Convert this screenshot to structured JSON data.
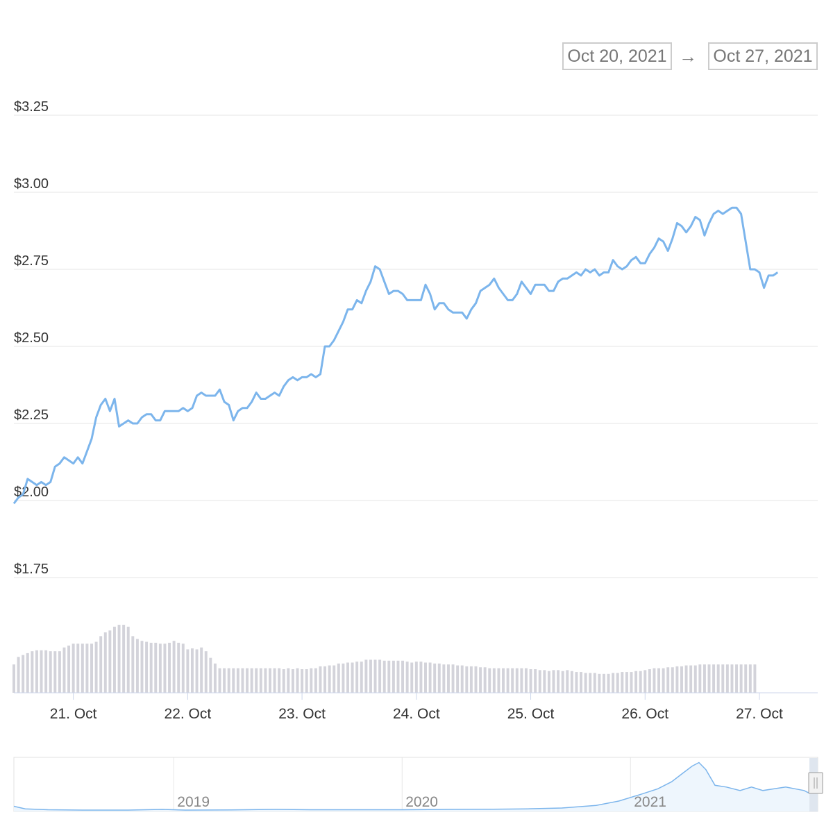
{
  "range_selector": {
    "from_date": "Oct 20, 2021",
    "arrow": "→",
    "to_date": "Oct 27, 2021"
  },
  "colors": {
    "price_line": "#7cb5ec",
    "volume_bars": "#d3d3da",
    "grid": "#e6e6e6",
    "axis_text": "#333333",
    "navigator_fill": "#eef6fd"
  },
  "chart_data": {
    "type": "line",
    "title": "",
    "xlabel": "",
    "ylabel": "",
    "y_axis": {
      "ticks": [
        {
          "value": 1.75,
          "label": "$1.75"
        },
        {
          "value": 2.0,
          "label": "$2.00"
        },
        {
          "value": 2.25,
          "label": "$2.25"
        },
        {
          "value": 2.5,
          "label": "$2.50"
        },
        {
          "value": 2.75,
          "label": "$2.75"
        },
        {
          "value": 3.0,
          "label": "$3.00"
        },
        {
          "value": 3.25,
          "label": "$3.25"
        }
      ],
      "ylim": [
        1.75,
        3.25
      ]
    },
    "x_axis": {
      "ticks": [
        {
          "value": 1.0,
          "label": "21. Oct"
        },
        {
          "value": 2.0,
          "label": "22. Oct"
        },
        {
          "value": 3.0,
          "label": "23. Oct"
        },
        {
          "value": 4.0,
          "label": "24. Oct"
        },
        {
          "value": 5.0,
          "label": "25. Oct"
        },
        {
          "value": 6.0,
          "label": "26. Oct"
        },
        {
          "value": 7.0,
          "label": "27. Oct"
        }
      ],
      "xlim": [
        0.48,
        7.51
      ],
      "unit": "days, value = day-of-October minus 20"
    },
    "grid": true,
    "legend": "none",
    "series": [
      {
        "name": "",
        "points": [
          [
            0.48,
            1.99
          ],
          [
            0.52,
            2.01
          ],
          [
            0.56,
            2.02
          ],
          [
            0.6,
            2.07
          ],
          [
            0.64,
            2.06
          ],
          [
            0.68,
            2.05
          ],
          [
            0.72,
            2.06
          ],
          [
            0.76,
            2.05
          ],
          [
            0.8,
            2.06
          ],
          [
            0.84,
            2.11
          ],
          [
            0.88,
            2.12
          ],
          [
            0.92,
            2.14
          ],
          [
            0.96,
            2.13
          ],
          [
            1.0,
            2.12
          ],
          [
            1.04,
            2.14
          ],
          [
            1.08,
            2.12
          ],
          [
            1.12,
            2.16
          ],
          [
            1.16,
            2.2
          ],
          [
            1.2,
            2.27
          ],
          [
            1.24,
            2.31
          ],
          [
            1.28,
            2.33
          ],
          [
            1.32,
            2.29
          ],
          [
            1.36,
            2.33
          ],
          [
            1.4,
            2.24
          ],
          [
            1.44,
            2.25
          ],
          [
            1.48,
            2.26
          ],
          [
            1.52,
            2.25
          ],
          [
            1.56,
            2.25
          ],
          [
            1.6,
            2.27
          ],
          [
            1.64,
            2.28
          ],
          [
            1.68,
            2.28
          ],
          [
            1.72,
            2.26
          ],
          [
            1.76,
            2.26
          ],
          [
            1.8,
            2.29
          ],
          [
            1.84,
            2.29
          ],
          [
            1.88,
            2.29
          ],
          [
            1.92,
            2.29
          ],
          [
            1.96,
            2.3
          ],
          [
            2.0,
            2.29
          ],
          [
            2.04,
            2.3
          ],
          [
            2.08,
            2.34
          ],
          [
            2.12,
            2.35
          ],
          [
            2.16,
            2.34
          ],
          [
            2.2,
            2.34
          ],
          [
            2.24,
            2.34
          ],
          [
            2.28,
            2.36
          ],
          [
            2.32,
            2.32
          ],
          [
            2.36,
            2.31
          ],
          [
            2.4,
            2.26
          ],
          [
            2.44,
            2.29
          ],
          [
            2.48,
            2.3
          ],
          [
            2.52,
            2.3
          ],
          [
            2.56,
            2.32
          ],
          [
            2.6,
            2.35
          ],
          [
            2.64,
            2.33
          ],
          [
            2.68,
            2.33
          ],
          [
            2.72,
            2.34
          ],
          [
            2.76,
            2.35
          ],
          [
            2.8,
            2.34
          ],
          [
            2.84,
            2.37
          ],
          [
            2.88,
            2.39
          ],
          [
            2.92,
            2.4
          ],
          [
            2.96,
            2.39
          ],
          [
            3.0,
            2.4
          ],
          [
            3.04,
            2.4
          ],
          [
            3.08,
            2.41
          ],
          [
            3.12,
            2.4
          ],
          [
            3.16,
            2.41
          ],
          [
            3.2,
            2.5
          ],
          [
            3.24,
            2.5
          ],
          [
            3.28,
            2.52
          ],
          [
            3.32,
            2.55
          ],
          [
            3.36,
            2.58
          ],
          [
            3.4,
            2.62
          ],
          [
            3.44,
            2.62
          ],
          [
            3.48,
            2.65
          ],
          [
            3.52,
            2.64
          ],
          [
            3.56,
            2.68
          ],
          [
            3.6,
            2.71
          ],
          [
            3.64,
            2.76
          ],
          [
            3.68,
            2.75
          ],
          [
            3.72,
            2.71
          ],
          [
            3.76,
            2.67
          ],
          [
            3.8,
            2.68
          ],
          [
            3.84,
            2.68
          ],
          [
            3.88,
            2.67
          ],
          [
            3.92,
            2.65
          ],
          [
            3.96,
            2.65
          ],
          [
            4.0,
            2.65
          ],
          [
            4.04,
            2.65
          ],
          [
            4.08,
            2.7
          ],
          [
            4.12,
            2.67
          ],
          [
            4.16,
            2.62
          ],
          [
            4.2,
            2.64
          ],
          [
            4.24,
            2.64
          ],
          [
            4.28,
            2.62
          ],
          [
            4.32,
            2.61
          ],
          [
            4.36,
            2.61
          ],
          [
            4.4,
            2.61
          ],
          [
            4.44,
            2.59
          ],
          [
            4.48,
            2.62
          ],
          [
            4.52,
            2.64
          ],
          [
            4.56,
            2.68
          ],
          [
            4.6,
            2.69
          ],
          [
            4.64,
            2.7
          ],
          [
            4.68,
            2.72
          ],
          [
            4.72,
            2.69
          ],
          [
            4.76,
            2.67
          ],
          [
            4.8,
            2.65
          ],
          [
            4.84,
            2.65
          ],
          [
            4.88,
            2.67
          ],
          [
            4.92,
            2.71
          ],
          [
            4.96,
            2.69
          ],
          [
            5.0,
            2.67
          ],
          [
            5.04,
            2.7
          ],
          [
            5.08,
            2.7
          ],
          [
            5.12,
            2.7
          ],
          [
            5.16,
            2.68
          ],
          [
            5.2,
            2.68
          ],
          [
            5.24,
            2.71
          ],
          [
            5.28,
            2.72
          ],
          [
            5.32,
            2.72
          ],
          [
            5.36,
            2.73
          ],
          [
            5.4,
            2.74
          ],
          [
            5.44,
            2.73
          ],
          [
            5.48,
            2.75
          ],
          [
            5.52,
            2.74
          ],
          [
            5.56,
            2.75
          ],
          [
            5.6,
            2.73
          ],
          [
            5.64,
            2.74
          ],
          [
            5.68,
            2.74
          ],
          [
            5.72,
            2.78
          ],
          [
            5.76,
            2.76
          ],
          [
            5.8,
            2.75
          ],
          [
            5.84,
            2.76
          ],
          [
            5.88,
            2.78
          ],
          [
            5.92,
            2.79
          ],
          [
            5.96,
            2.77
          ],
          [
            6.0,
            2.77
          ],
          [
            6.04,
            2.8
          ],
          [
            6.08,
            2.82
          ],
          [
            6.12,
            2.85
          ],
          [
            6.16,
            2.84
          ],
          [
            6.2,
            2.81
          ],
          [
            6.24,
            2.85
          ],
          [
            6.28,
            2.9
          ],
          [
            6.32,
            2.89
          ],
          [
            6.36,
            2.87
          ],
          [
            6.4,
            2.89
          ],
          [
            6.44,
            2.92
          ],
          [
            6.48,
            2.91
          ],
          [
            6.52,
            2.86
          ],
          [
            6.56,
            2.9
          ],
          [
            6.6,
            2.93
          ],
          [
            6.64,
            2.94
          ],
          [
            6.68,
            2.93
          ],
          [
            6.72,
            2.94
          ],
          [
            6.76,
            2.95
          ],
          [
            6.8,
            2.95
          ],
          [
            6.84,
            2.93
          ],
          [
            6.88,
            2.84
          ],
          [
            6.92,
            2.75
          ],
          [
            6.96,
            2.75
          ],
          [
            7.0,
            2.74
          ],
          [
            7.04,
            2.69
          ],
          [
            7.08,
            2.73
          ],
          [
            7.12,
            2.73
          ],
          [
            7.16,
            2.74
          ]
        ]
      },
      {
        "name": "",
        "kind": "volume",
        "values": [
          30,
          38,
          40,
          42,
          44,
          45,
          45,
          45,
          44,
          44,
          44,
          48,
          50,
          52,
          52,
          52,
          52,
          52,
          54,
          60,
          64,
          66,
          70,
          72,
          72,
          70,
          60,
          57,
          55,
          54,
          53,
          53,
          52,
          52,
          53,
          55,
          53,
          52,
          46,
          47,
          46,
          48,
          44,
          37,
          31,
          26,
          26,
          26,
          26,
          26,
          26,
          26,
          26,
          26,
          26,
          26,
          26,
          26,
          26,
          25,
          26,
          25,
          26,
          25,
          25,
          26,
          26,
          28,
          28,
          29,
          29,
          31,
          31,
          32,
          32,
          33,
          33,
          35,
          35,
          35,
          35,
          34,
          34,
          34,
          34,
          34,
          33,
          32,
          33,
          33,
          32,
          32,
          31,
          31,
          30,
          30,
          30,
          29,
          29,
          28,
          28,
          28,
          27,
          27,
          26,
          26,
          26,
          26,
          26,
          26,
          26,
          26,
          26,
          25,
          25,
          24,
          24,
          23,
          24,
          24,
          23,
          24,
          23,
          22,
          22,
          21,
          21,
          21,
          20,
          20,
          20,
          21,
          21,
          22,
          22,
          22,
          23,
          23,
          24,
          25,
          26,
          26,
          26,
          27,
          27,
          28,
          28,
          29,
          29,
          29,
          30,
          30,
          30,
          30,
          30,
          30,
          30,
          30,
          30,
          30,
          30,
          30,
          30
        ]
      }
    ],
    "navigator": {
      "x_labels": [
        {
          "value": 2019.0,
          "label": "2019"
        },
        {
          "value": 2020.0,
          "label": "2020"
        },
        {
          "value": 2021.0,
          "label": "2021"
        }
      ],
      "xlim": [
        2018.3,
        2021.82
      ],
      "ylim": [
        0,
        3.1
      ],
      "points": [
        [
          2018.3,
          0.3
        ],
        [
          2018.35,
          0.15
        ],
        [
          2018.45,
          0.1
        ],
        [
          2018.6,
          0.08
        ],
        [
          2018.8,
          0.08
        ],
        [
          2018.95,
          0.12
        ],
        [
          2019.05,
          0.08
        ],
        [
          2019.25,
          0.09
        ],
        [
          2019.45,
          0.12
        ],
        [
          2019.6,
          0.1
        ],
        [
          2019.8,
          0.1
        ],
        [
          2020.0,
          0.1
        ],
        [
          2020.2,
          0.12
        ],
        [
          2020.4,
          0.13
        ],
        [
          2020.55,
          0.15
        ],
        [
          2020.7,
          0.2
        ],
        [
          2020.85,
          0.35
        ],
        [
          2020.95,
          0.6
        ],
        [
          2021.05,
          1.0
        ],
        [
          2021.12,
          1.3
        ],
        [
          2021.18,
          1.7
        ],
        [
          2021.23,
          2.2
        ],
        [
          2021.27,
          2.6
        ],
        [
          2021.3,
          2.8
        ],
        [
          2021.33,
          2.4
        ],
        [
          2021.37,
          1.5
        ],
        [
          2021.42,
          1.4
        ],
        [
          2021.48,
          1.2
        ],
        [
          2021.53,
          1.4
        ],
        [
          2021.58,
          1.2
        ],
        [
          2021.63,
          1.3
        ],
        [
          2021.68,
          1.4
        ],
        [
          2021.72,
          1.3
        ],
        [
          2021.76,
          1.2
        ],
        [
          2021.79,
          1.0
        ],
        [
          2021.82,
          1.15
        ]
      ]
    }
  }
}
